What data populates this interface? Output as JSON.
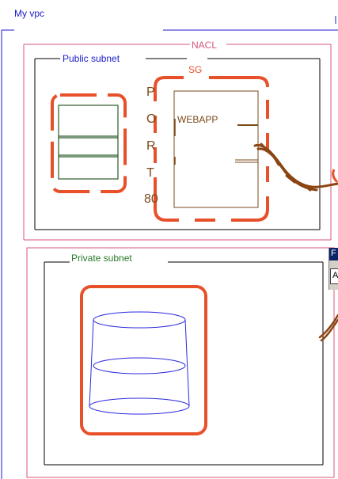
{
  "vpc": {
    "label": "My vpc",
    "color": "#1a1acc"
  },
  "nacl": {
    "label": "NACL",
    "color": "#d8557a"
  },
  "public_subnet": {
    "label": "Public subnet",
    "color": "#1a1acc"
  },
  "private_subnet": {
    "label": "Private subnet",
    "color": "#2a7a2a"
  },
  "security_group": {
    "label": "SG",
    "color": "#e8502a"
  },
  "port": {
    "letters": [
      "P",
      "O",
      "R",
      "T"
    ],
    "number": "80",
    "color": "#7a4a1a"
  },
  "webapp": {
    "label": "WEBAPP",
    "color": "#7a4a1a"
  },
  "popup": {
    "item1": "F",
    "item2": "A"
  },
  "colors": {
    "highlight": "#e8502a",
    "server_rack": "#2a5a2a",
    "database": "#2a2ae0",
    "subnet_border": "#000000",
    "scribble": "#8b4513"
  }
}
